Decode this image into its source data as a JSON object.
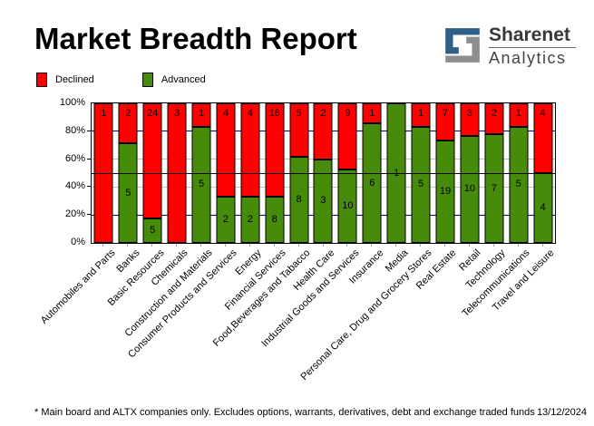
{
  "title": "Market Breadth Report",
  "logo": {
    "line1": "Sharenet",
    "line2": "Analytics",
    "blue": "#2e5f86",
    "gray": "#8d8d8d"
  },
  "legend": {
    "declined_label": "Declined",
    "advanced_label": "Advanced"
  },
  "colors": {
    "declined": "#ff0000",
    "advanced": "#478b0a",
    "grid_navy": "#000080",
    "grid_silver": "#c0c0c0",
    "reference_black": "#000000"
  },
  "footer": {
    "note": "* Main board and ALTX companies only. Excludes options, warrants, derivatives, debt and exchange traded funds",
    "date": "13/12/2024"
  },
  "chart_data": {
    "type": "bar",
    "variant": "100%-stacked-column",
    "title": "Market Breadth Report",
    "xlabel": "",
    "ylabel": "",
    "ylim": [
      0,
      100
    ],
    "y_ticks": [
      {
        "value": 0,
        "label": "0%"
      },
      {
        "value": 20,
        "label": "20%"
      },
      {
        "value": 40,
        "label": "40%"
      },
      {
        "value": 60,
        "label": "60%"
      },
      {
        "value": 80,
        "label": "80%"
      },
      {
        "value": 100,
        "label": "100%"
      }
    ],
    "gridlines": [
      {
        "value": 20,
        "color": "#000080"
      },
      {
        "value": 40,
        "color": "#c0c0c0"
      },
      {
        "value": 60,
        "color": "#c0c0c0"
      },
      {
        "value": 80,
        "color": "#000080"
      }
    ],
    "reference_line": {
      "value": 50,
      "color": "#000000"
    },
    "legend_position": "top-left",
    "categories": [
      "Automobiles and Parts",
      "Banks",
      "Basic Resources",
      "Chemicals",
      "Construction and Materials",
      "Consumer Products and Services",
      "Energy",
      "Financial Services",
      "Food,Beverages and Tabacco",
      "Health Care",
      "Industrial Goods and Services",
      "Insurance",
      "Media",
      "Personal Care, Drug and Grocery Stores",
      "Real Estate",
      "Retail",
      "Technology",
      "Telecommunications",
      "Travel and Leisure"
    ],
    "series": [
      {
        "name": "Declined",
        "color": "#ff0000",
        "values": [
          1,
          2,
          24,
          3,
          1,
          4,
          4,
          16,
          5,
          2,
          9,
          1,
          0,
          1,
          7,
          3,
          2,
          1,
          4
        ]
      },
      {
        "name": "Advanced",
        "color": "#478b0a",
        "values": [
          0,
          5,
          5,
          0,
          5,
          2,
          2,
          8,
          8,
          3,
          10,
          6,
          1,
          5,
          19,
          10,
          7,
          5,
          4
        ]
      }
    ],
    "advanced_percent_of_total": [
      0,
      71.4,
      17.2,
      0,
      83.3,
      33.3,
      33.3,
      33.3,
      61.5,
      60,
      52.6,
      85.7,
      100,
      83.3,
      73.1,
      76.9,
      77.8,
      83.3,
      50
    ]
  }
}
